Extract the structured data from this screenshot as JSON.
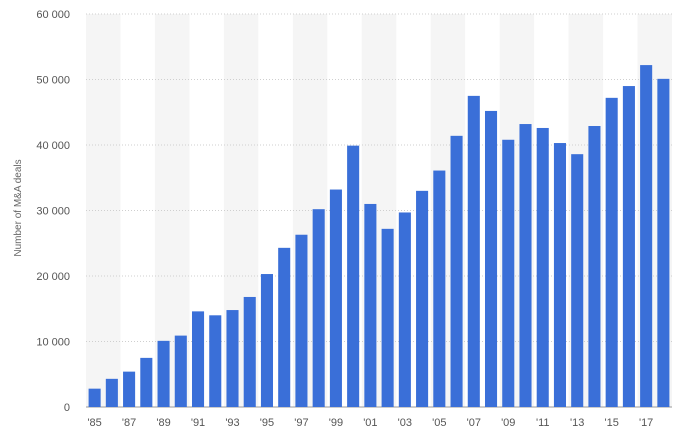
{
  "chart_data": {
    "type": "bar",
    "title": "",
    "xlabel": "",
    "ylabel": "Number of M&A deals",
    "ylim": [
      0,
      60000
    ],
    "yticks": [
      0,
      10000,
      20000,
      30000,
      40000,
      50000,
      60000
    ],
    "ytick_labels": [
      "0",
      "10 000",
      "20 000",
      "30 000",
      "40 000",
      "50 000",
      "60 000"
    ],
    "grid": "horizontal dotted",
    "bar_color": "#3a6fd8",
    "band_color": "#f5f5f5",
    "categories": [
      "'85",
      "'86",
      "'87",
      "'88",
      "'89",
      "'90",
      "'91",
      "'92",
      "'93",
      "'94",
      "'95",
      "'96",
      "'97",
      "'98",
      "'99",
      "'00",
      "'01",
      "'02",
      "'03",
      "'04",
      "'05",
      "'06",
      "'07",
      "'08",
      "'09",
      "'10",
      "'11",
      "'12",
      "'13",
      "'14",
      "'15",
      "'16",
      "'17",
      "'18"
    ],
    "xtick_labels": [
      "'85",
      "",
      "'87",
      "",
      "'89",
      "",
      "'91",
      "",
      "'93",
      "",
      "'95",
      "",
      "'97",
      "",
      "'99",
      "",
      "'01",
      "",
      "'03",
      "",
      "'05",
      "",
      "'07",
      "",
      "'09",
      "",
      "'11",
      "",
      "'13",
      "",
      "'15",
      "",
      "'17",
      ""
    ],
    "values": [
      2800,
      4300,
      5400,
      7500,
      10100,
      10900,
      14600,
      14000,
      14800,
      16800,
      20300,
      24300,
      26300,
      30200,
      33200,
      39900,
      31000,
      27200,
      29700,
      33000,
      36100,
      41400,
      47500,
      45200,
      40800,
      43200,
      42600,
      40300,
      38600,
      42900,
      47200,
      49000,
      52200,
      50100
    ]
  }
}
